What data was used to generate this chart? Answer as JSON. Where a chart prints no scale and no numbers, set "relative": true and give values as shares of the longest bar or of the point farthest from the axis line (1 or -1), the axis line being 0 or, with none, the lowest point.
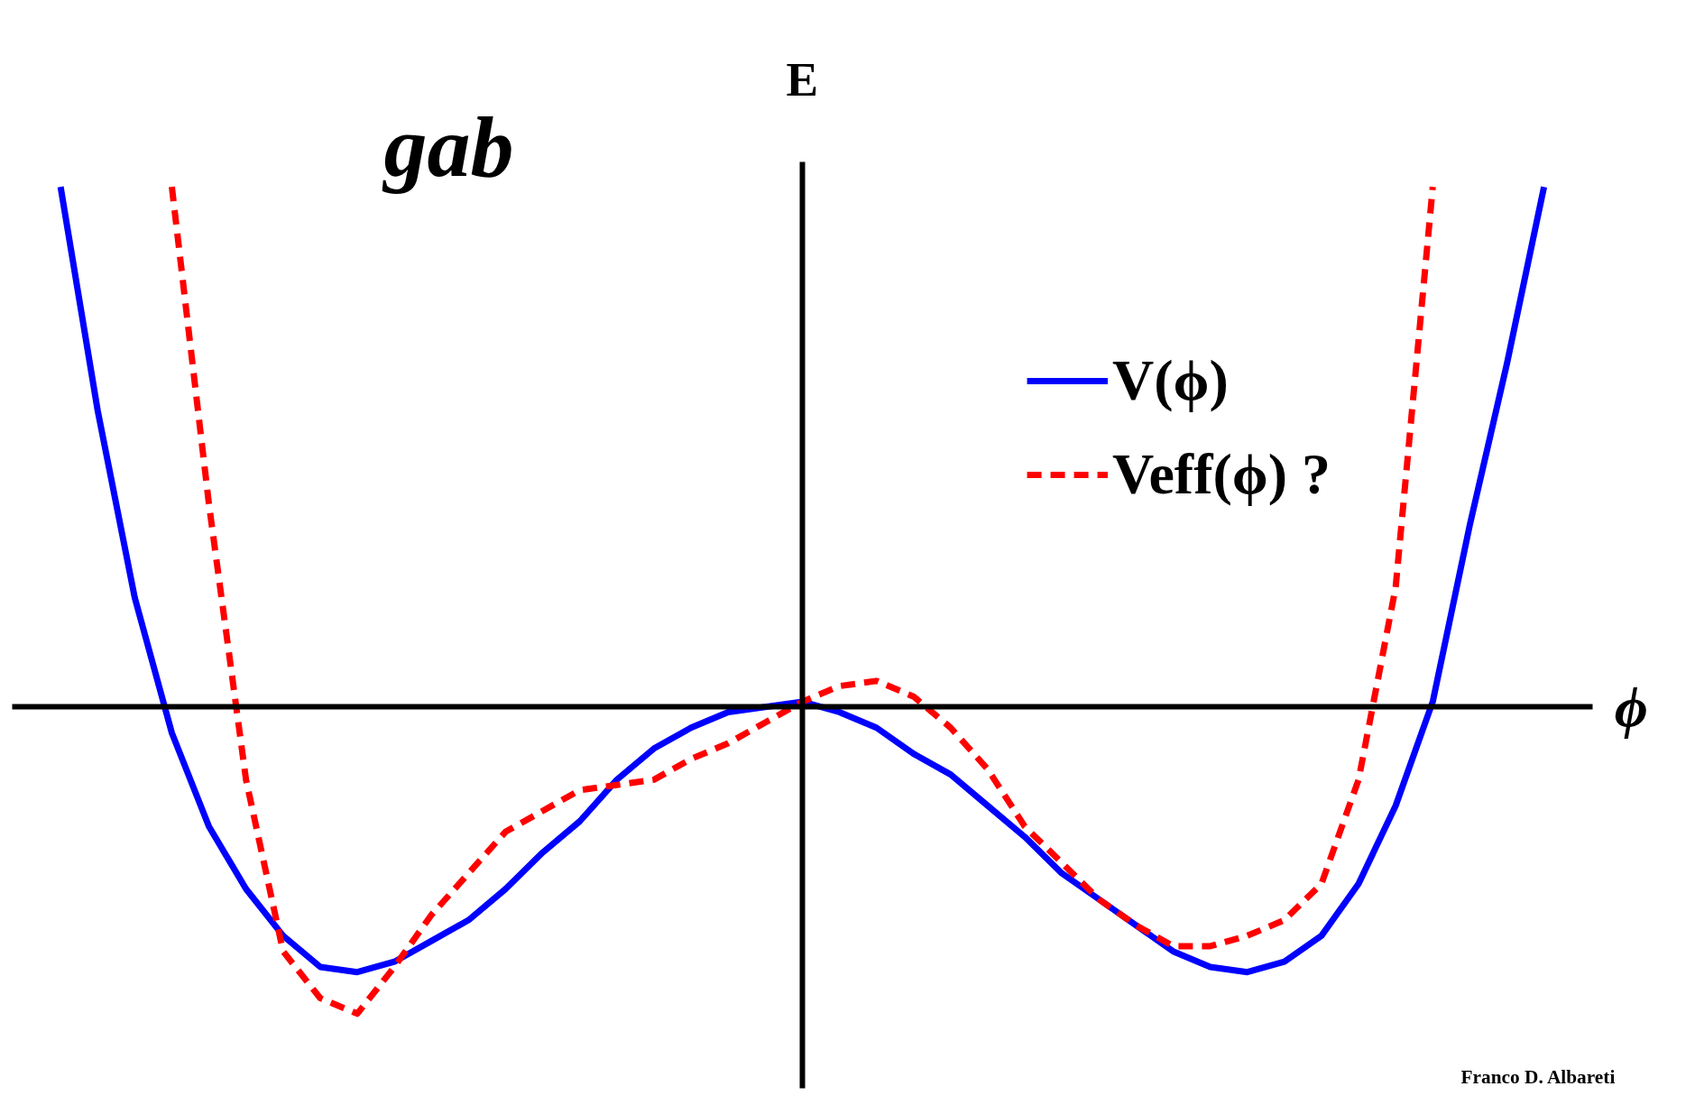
{
  "chart_data": {
    "type": "line",
    "relative": true,
    "xlabel": "ϕ",
    "ylabel": "E",
    "legend": "top right",
    "grid": false,
    "annotations": [
      "gab",
      "Franco D. Albareti"
    ],
    "categories": [
      null,
      null,
      null,
      null,
      null,
      null,
      null,
      null,
      null,
      null,
      null,
      null,
      null,
      null,
      null,
      null,
      null,
      null,
      null,
      null,
      null,
      null,
      null,
      null,
      null,
      null,
      null,
      null,
      null,
      null,
      null,
      null,
      null,
      null,
      null,
      null,
      null,
      null,
      null,
      null,
      null
    ],
    "series": [
      {
        "name": "V(ϕ)",
        "color": "#0000ff",
        "line_style": "solid",
        "values": [
          1.0,
          0.57,
          0.21,
          -0.05,
          -0.23,
          -0.35,
          -0.44,
          -0.5,
          -0.51,
          -0.49,
          -0.45,
          -0.41,
          -0.35,
          -0.28,
          -0.22,
          -0.14,
          -0.08,
          -0.04,
          -0.01,
          0.0,
          0.01,
          -0.01,
          -0.04,
          -0.09,
          -0.13,
          -0.19,
          -0.25,
          -0.32,
          -0.37,
          -0.42,
          -0.47,
          -0.5,
          -0.51,
          -0.49,
          -0.44,
          -0.34,
          -0.19,
          0.01,
          0.35,
          0.66,
          1.0
        ]
      },
      {
        "name": "Veff(ϕ) ?",
        "color": "#ff0000",
        "line_style": "dashed",
        "values": [
          null,
          null,
          null,
          1.0,
          0.39,
          -0.14,
          -0.47,
          -0.56,
          -0.59,
          -0.5,
          -0.4,
          -0.32,
          -0.24,
          -0.2,
          -0.16,
          -0.15,
          -0.14,
          -0.1,
          -0.07,
          -0.03,
          0.01,
          0.04,
          0.05,
          0.02,
          -0.04,
          -0.12,
          -0.23,
          -0.3,
          -0.37,
          -0.42,
          -0.46,
          -0.46,
          -0.44,
          -0.41,
          -0.34,
          -0.14,
          0.23,
          1.0,
          null,
          null,
          null
        ]
      }
    ]
  }
}
